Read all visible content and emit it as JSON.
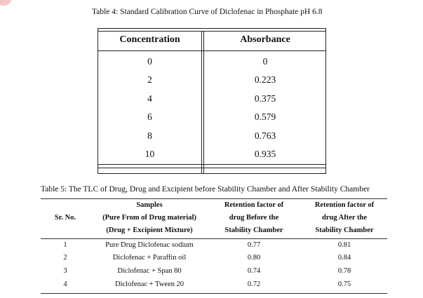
{
  "table4": {
    "caption": "Table 4: Standard Calibration Curve of Diclofenac in Phosphate pH 6.8",
    "headers": [
      "Concentration",
      "Absorbance"
    ],
    "rows": [
      [
        "0",
        "0"
      ],
      [
        "2",
        "0.223"
      ],
      [
        "4",
        "0.375"
      ],
      [
        "6",
        "0.579"
      ],
      [
        "8",
        "0.763"
      ],
      [
        "10",
        "0.935"
      ]
    ]
  },
  "table5": {
    "caption": "Table 5: The TLC of Drug, Drug and Excipient before Stability Chamber and After Stability Chamber",
    "headers": {
      "srno": "Sr. No.",
      "samples": [
        "Samples",
        "(Pure From of Drug material)",
        "(Drug + Excipient Mixture)"
      ],
      "before": [
        "Retention factor of",
        "drug Before the",
        "Stability Chamber"
      ],
      "after": [
        "Retention factor of",
        "drug After the",
        "Stability Chamber"
      ]
    },
    "rows": [
      {
        "sr": "1",
        "sample": "Pure Drug Diclofenac sodium",
        "before": "0.77",
        "after": "0.81"
      },
      {
        "sr": "2",
        "sample": "Diclofenac + Paraffin oil",
        "before": "0.80",
        "after": "0.84"
      },
      {
        "sr": "3",
        "sample": "Diclofenac + Span 80",
        "before": "0.74",
        "after": "0.78"
      },
      {
        "sr": "4",
        "sample": "Diclofenac + Tween 20",
        "before": "0.72",
        "after": "0.75"
      }
    ]
  }
}
